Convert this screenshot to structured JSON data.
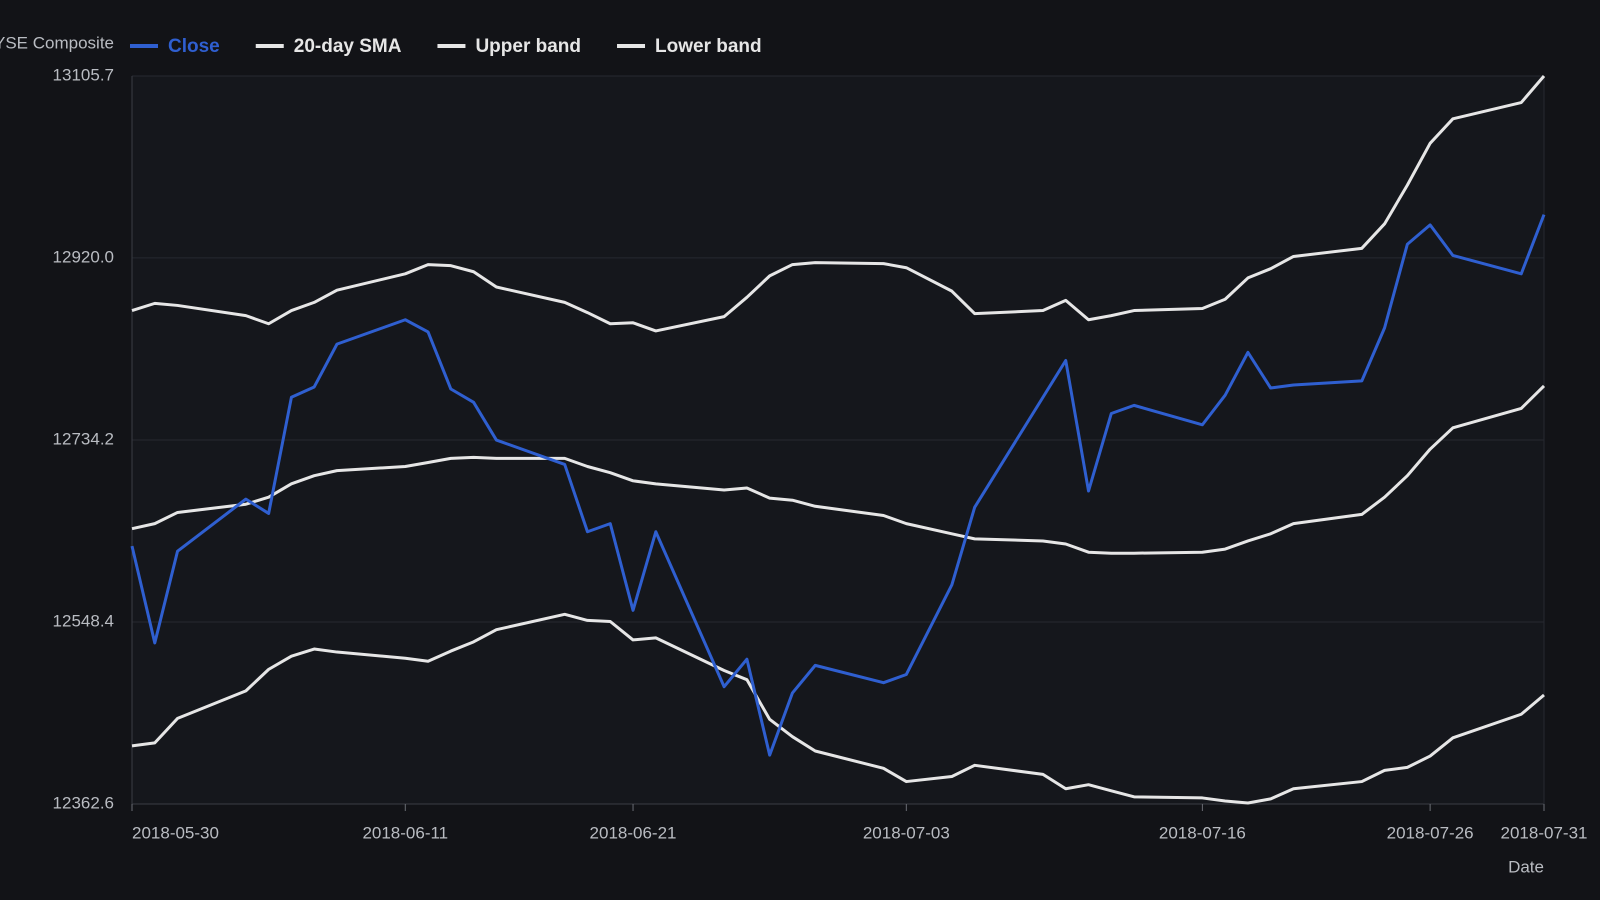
{
  "chart_data": {
    "type": "line",
    "y_label": "NYSE Composite",
    "x_label": "Date",
    "x": [
      "2018-05-30",
      "2018-05-31",
      "2018-06-01",
      "2018-06-04",
      "2018-06-05",
      "2018-06-06",
      "2018-06-07",
      "2018-06-08",
      "2018-06-11",
      "2018-06-12",
      "2018-06-13",
      "2018-06-14",
      "2018-06-15",
      "2018-06-18",
      "2018-06-19",
      "2018-06-20",
      "2018-06-21",
      "2018-06-22",
      "2018-06-25",
      "2018-06-26",
      "2018-06-27",
      "2018-06-28",
      "2018-06-29",
      "2018-07-02",
      "2018-07-03",
      "2018-07-05",
      "2018-07-06",
      "2018-07-09",
      "2018-07-10",
      "2018-07-11",
      "2018-07-12",
      "2018-07-13",
      "2018-07-16",
      "2018-07-17",
      "2018-07-18",
      "2018-07-19",
      "2018-07-20",
      "2018-07-23",
      "2018-07-24",
      "2018-07-25",
      "2018-07-26",
      "2018-07-27",
      "2018-07-30",
      "2018-07-31"
    ],
    "series": [
      {
        "name": "Close",
        "color": "#2f5fd0",
        "values": [
          12625.9,
          12527.0,
          12620.7,
          12673.8,
          12659.2,
          12777.8,
          12788.3,
          12832.0,
          12856.9,
          12844.5,
          12786.2,
          12772.6,
          12734.1,
          12709.2,
          12640.5,
          12648.8,
          12560.3,
          12640.5,
          12482.3,
          12510.4,
          12412.5,
          12476.0,
          12504.1,
          12486.4,
          12494.8,
          12586.3,
          12665.4,
          12777.8,
          12815.3,
          12682.1,
          12761.2,
          12769.5,
          12749.7,
          12779.9,
          12823.6,
          12787.2,
          12790.3,
          12794.5,
          12848.6,
          12934.0,
          12953.7,
          12922.5,
          12903.8,
          12964.2
        ]
      },
      {
        "name": "20-day SMA",
        "color": "#e6e6e6",
        "values": [
          12643.6,
          12648.8,
          12660.2,
          12668.6,
          12675.8,
          12689.4,
          12697.7,
          12702.9,
          12707.1,
          12711.2,
          12715.4,
          12716.4,
          12715.4,
          12715.4,
          12707.1,
          12700.8,
          12692.5,
          12689.4,
          12683.1,
          12685.2,
          12674.8,
          12672.7,
          12666.5,
          12657.1,
          12648.8,
          12638.4,
          12633.2,
          12631.1,
          12628.0,
          12619.6,
          12618.6,
          12618.6,
          12619.6,
          12622.8,
          12631.1,
          12638.4,
          12648.8,
          12658.2,
          12675.8,
          12697.7,
          12724.8,
          12746.6,
          12766.4,
          12789.3
        ]
      },
      {
        "name": "Upper band",
        "color": "#e6e6e6",
        "values": [
          12866.3,
          12873.6,
          12871.5,
          12861.1,
          12852.8,
          12866.3,
          12874.6,
          12887.1,
          12903.8,
          12913.2,
          12912.1,
          12905.9,
          12890.3,
          12874.6,
          12864.2,
          12852.8,
          12853.8,
          12845.5,
          12860.1,
          12879.8,
          12901.7,
          12913.2,
          12915.2,
          12914.2,
          12910.0,
          12886.1,
          12863.2,
          12866.3,
          12876.7,
          12856.9,
          12861.1,
          12866.3,
          12868.4,
          12877.8,
          12899.6,
          12909.0,
          12921.5,
          12929.8,
          12954.8,
          12994.3,
          13037.0,
          13062.0,
          13078.6,
          13105.7
        ]
      },
      {
        "name": "Lower band",
        "color": "#e6e6e6",
        "values": [
          12421.9,
          12425.0,
          12450.0,
          12478.1,
          12500.0,
          12513.5,
          12520.8,
          12517.7,
          12511.4,
          12508.3,
          12518.7,
          12528.1,
          12540.5,
          12556.2,
          12550.0,
          12548.9,
          12530.1,
          12532.2,
          12498.9,
          12489.5,
          12449.0,
          12431.3,
          12416.7,
          12399.0,
          12385.5,
          12390.7,
          12402.1,
          12392.8,
          12378.2,
          12382.3,
          12376.1,
          12369.9,
          12368.8,
          12365.7,
          12363.6,
          12367.8,
          12378.2,
          12385.5,
          12396.9,
          12400.0,
          12411.5,
          12430.2,
          12454.2,
          12473.9
        ]
      }
    ],
    "xlim": [
      "2018-05-30",
      "2018-07-31"
    ],
    "xticks": [
      "2018-05-30",
      "2018-06-11",
      "2018-06-21",
      "2018-07-03",
      "2018-07-16",
      "2018-07-26",
      "2018-07-31"
    ],
    "ylim": [
      12362.6,
      13105.7
    ],
    "yticks": [
      12362.6,
      12548.4,
      12734.2,
      {
        "value": 12920,
        "label": "12920.0"
      },
      13105.7
    ],
    "grid": true,
    "legend": "top"
  }
}
